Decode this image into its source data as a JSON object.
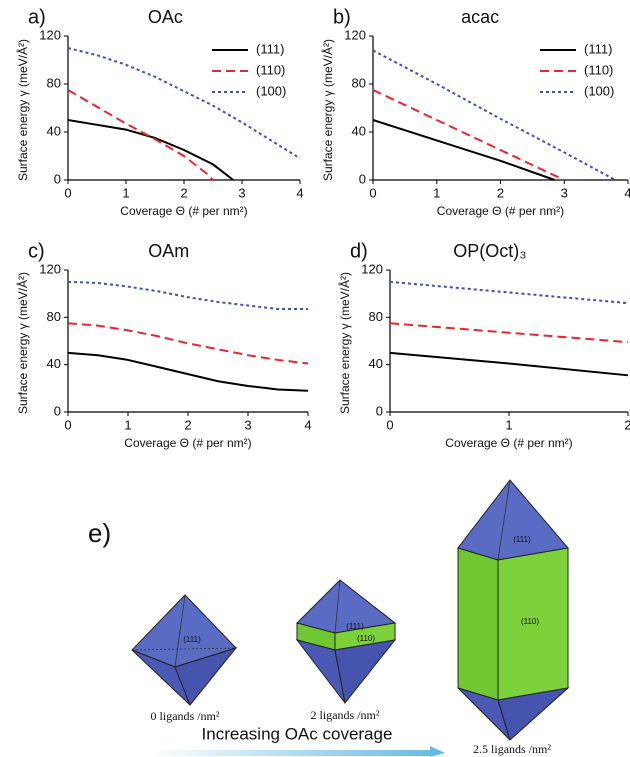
{
  "chart_data": [
    {
      "type": "line",
      "panel_label": "a)",
      "title": "OAc",
      "xlabel": "Coverage Θ (# per nm²)",
      "ylabel": "Surface energy γ (meV/Å²)",
      "xlim": [
        0,
        4
      ],
      "xticks": [
        0,
        1,
        2,
        3,
        4
      ],
      "ylim": [
        0,
        120
      ],
      "yticks": [
        0,
        40,
        80,
        120
      ],
      "legend": "upper right",
      "series": [
        {
          "name": "(111)",
          "color": "#000000",
          "linestyle": "solid",
          "x": [
            0,
            0.5,
            1,
            1.5,
            2,
            2.5,
            2.85
          ],
          "values": [
            50,
            46,
            42,
            35,
            25,
            13,
            0
          ]
        },
        {
          "name": "(110)",
          "color": "#e8262b",
          "linestyle": "dashed",
          "x": [
            0,
            0.5,
            1,
            1.5,
            2,
            2.4,
            2.5
          ],
          "values": [
            75,
            61,
            47,
            34,
            20,
            5,
            0
          ]
        },
        {
          "name": "(100)",
          "color": "#3a4fc0",
          "linestyle": "dotted",
          "x": [
            0,
            0.5,
            1,
            1.5,
            2,
            2.5,
            3,
            3.5,
            4
          ],
          "values": [
            110,
            104,
            96,
            86,
            74,
            62,
            48,
            33,
            18
          ]
        }
      ]
    },
    {
      "type": "line",
      "panel_label": "b)",
      "title": "acac",
      "xlabel": "Coverage Θ (# per nm²)",
      "ylabel": "Surface energy γ (meV/Å²)",
      "xlim": [
        0,
        4
      ],
      "xticks": [
        0,
        1,
        2,
        3,
        4
      ],
      "ylim": [
        0,
        120
      ],
      "yticks": [
        0,
        40,
        80,
        120
      ],
      "legend": "upper right",
      "series": [
        {
          "name": "(111)",
          "color": "#000000",
          "linestyle": "solid",
          "x": [
            0,
            1,
            2,
            2.85
          ],
          "values": [
            50,
            33,
            16,
            0
          ]
        },
        {
          "name": "(110)",
          "color": "#e8262b",
          "linestyle": "dashed",
          "x": [
            0,
            1,
            2,
            3
          ],
          "values": [
            75,
            50,
            25,
            0
          ]
        },
        {
          "name": "(100)",
          "color": "#3a4fc0",
          "linestyle": "dotted",
          "x": [
            0,
            1,
            2,
            3,
            3.8
          ],
          "values": [
            108,
            80,
            51,
            23,
            0
          ]
        }
      ]
    },
    {
      "type": "line",
      "panel_label": "c)",
      "title": "OAm",
      "xlabel": "Coverage Θ (# per nm²)",
      "ylabel": "Surface energy γ (meV/Å²)",
      "xlim": [
        0,
        4
      ],
      "xticks": [
        0,
        1,
        2,
        3,
        4
      ],
      "ylim": [
        0,
        120
      ],
      "yticks": [
        0,
        40,
        80,
        120
      ],
      "series": [
        {
          "color": "#000000",
          "linestyle": "solid",
          "x": [
            0,
            0.5,
            1,
            1.5,
            2,
            2.5,
            3,
            3.5,
            4
          ],
          "values": [
            50,
            48,
            44,
            38,
            32,
            26,
            22,
            19,
            18
          ]
        },
        {
          "color": "#e8262b",
          "linestyle": "dashed",
          "x": [
            0,
            0.5,
            1,
            1.5,
            2,
            2.5,
            3,
            3.5,
            4
          ],
          "values": [
            75,
            73,
            69,
            64,
            58,
            53,
            48,
            44,
            41
          ]
        },
        {
          "color": "#3a4fc0",
          "linestyle": "dotted",
          "x": [
            0,
            0.5,
            1,
            1.5,
            2,
            2.5,
            3,
            3.5,
            4
          ],
          "values": [
            110,
            109,
            106,
            102,
            97,
            93,
            90,
            87,
            87
          ]
        }
      ]
    },
    {
      "type": "line",
      "panel_label": "d)",
      "title": "OP(Oct)₃",
      "xlabel": "Coverage Θ (# per nm²)",
      "ylabel": "Surface energy γ (meV/Å²)",
      "xlim": [
        0,
        2
      ],
      "xticks": [
        0,
        1,
        2
      ],
      "ylim": [
        0,
        120
      ],
      "yticks": [
        0,
        40,
        80,
        120
      ],
      "series": [
        {
          "color": "#000000",
          "linestyle": "solid",
          "x": [
            0,
            1,
            2
          ],
          "values": [
            50,
            41,
            31
          ]
        },
        {
          "color": "#e8262b",
          "linestyle": "dashed",
          "x": [
            0,
            1,
            2
          ],
          "values": [
            75,
            67,
            59
          ]
        },
        {
          "color": "#3a4fc0",
          "linestyle": "dotted",
          "x": [
            0,
            1,
            2
          ],
          "values": [
            110,
            101,
            92
          ]
        }
      ]
    }
  ],
  "diagram": {
    "label": "e)",
    "crystals": [
      {
        "faces": [
          "(111)"
        ],
        "caption": "0 ligands /nm²"
      },
      {
        "faces": [
          "(111)",
          "(110)"
        ],
        "caption": "2 ligands /nm²"
      },
      {
        "faces": [
          "(111)",
          "(110)"
        ],
        "caption": "2.5 ligands /nm²"
      }
    ],
    "arrow_label": "Increasing OAc coverage"
  }
}
